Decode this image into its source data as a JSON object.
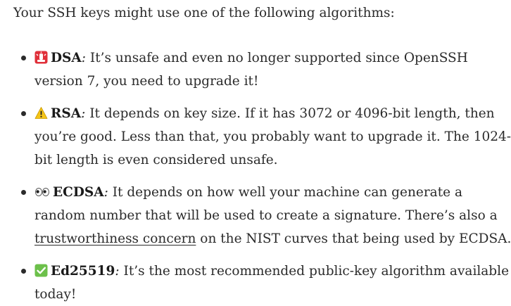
{
  "intro": "Your SSH keys might use one of the following algorithms:",
  "items": [
    {
      "icon": "police-light-icon",
      "name": "DSA",
      "lines": [
        ": It’s unsafe and even no longer supported since OpenSSH",
        "version 7, you need to upgrade it!"
      ]
    },
    {
      "icon": "warning-icon",
      "name": "RSA",
      "lines": [
        ": It depends on key size. If it has 3072 or 4096-bit length, then",
        "you’re good. Less than that, you probably want to upgrade it. The 1024-",
        "bit length is even considered unsafe."
      ]
    },
    {
      "icon": "eyes-icon",
      "name": "ECDSA",
      "lines": [
        ": It depends on how well your machine can generate a",
        "random number that will be used to create a signature. There’s also a"
      ],
      "link_text": "trustworthiness concern",
      "after_link": " on the NIST curves that being used by ECDSA."
    },
    {
      "icon": "check-mark-button-icon",
      "name": "Ed25519",
      "lines": [
        ": It’s the most recommended public-key algorithm available",
        "today!"
      ]
    }
  ],
  "colors": {
    "text": "#2b2b2b",
    "siren_red": "#e0303a",
    "warning_yellow": "#f5c518",
    "check_green": "#6cc04a"
  }
}
